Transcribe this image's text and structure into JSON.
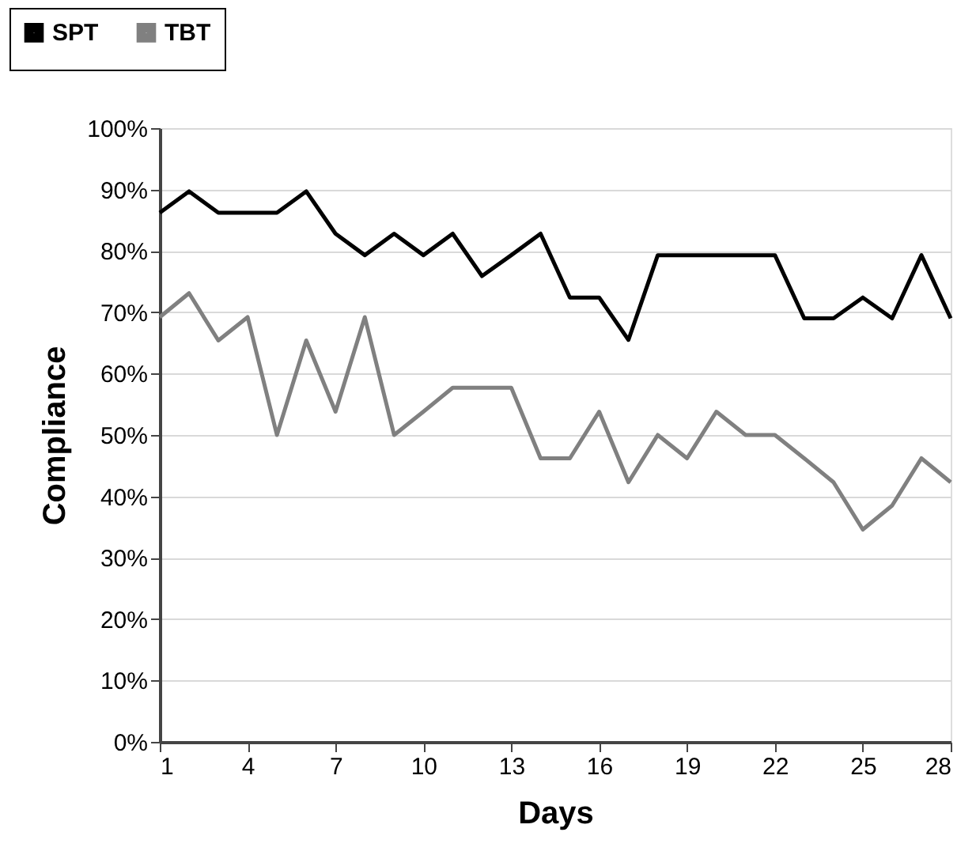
{
  "chart_data": {
    "type": "line",
    "xlabel": "Days",
    "ylabel": "Compliance",
    "x": [
      1,
      2,
      3,
      4,
      5,
      6,
      7,
      8,
      9,
      10,
      11,
      12,
      13,
      14,
      15,
      16,
      17,
      18,
      19,
      20,
      21,
      22,
      23,
      24,
      25,
      26,
      27,
      28
    ],
    "series": [
      {
        "name": "SPT",
        "color": "#000000",
        "values": [
          86.2,
          89.7,
          86.2,
          86.2,
          86.2,
          89.7,
          82.8,
          79.3,
          82.8,
          79.3,
          82.8,
          75.9,
          79.3,
          82.8,
          72.4,
          72.4,
          65.5,
          79.3,
          79.3,
          79.3,
          79.3,
          79.3,
          69,
          69,
          72.4,
          69,
          79.3,
          69
        ]
      },
      {
        "name": "TBT",
        "color": "#808080",
        "values": [
          69.2,
          73.1,
          65.4,
          69.2,
          50,
          65.4,
          53.8,
          69.2,
          50,
          53.8,
          57.7,
          57.7,
          57.7,
          46.2,
          46.2,
          53.8,
          42.3,
          50,
          46.2,
          53.8,
          50,
          50,
          46.2,
          42.3,
          34.6,
          38.5,
          46.2,
          42.3
        ]
      }
    ],
    "xlim": [
      1,
      28
    ],
    "xticks": [
      1,
      4,
      7,
      10,
      13,
      16,
      19,
      22,
      25,
      28
    ],
    "ylim": [
      0,
      100
    ],
    "yticks": [
      {
        "value": 0,
        "label": "0%"
      },
      {
        "value": 10,
        "label": "10%"
      },
      {
        "value": 20,
        "label": "20%"
      },
      {
        "value": 30,
        "label": "30%"
      },
      {
        "value": 40,
        "label": "40%"
      },
      {
        "value": 50,
        "label": "50%"
      },
      {
        "value": 60,
        "label": "60%"
      },
      {
        "value": 70,
        "label": "70%"
      },
      {
        "value": 80,
        "label": "80%"
      },
      {
        "value": 90,
        "label": "90%"
      },
      {
        "value": 100,
        "label": "100%"
      }
    ],
    "grid": "y",
    "legend": "top left",
    "marker": "none",
    "line_style": "solid"
  }
}
